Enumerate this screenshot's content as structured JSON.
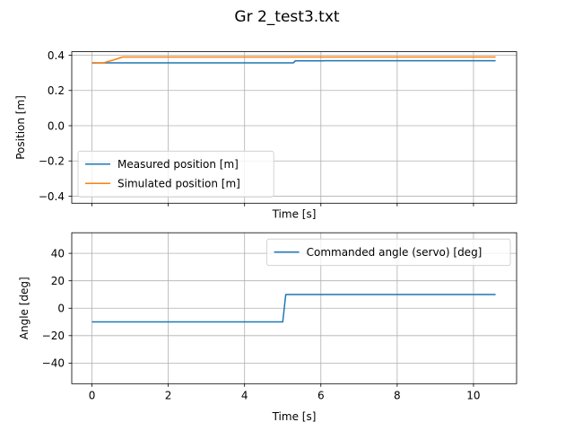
{
  "figure": {
    "title": "Gr 2_test3.txt"
  },
  "chart_data": [
    {
      "type": "line",
      "xlabel": "Time [s]",
      "ylabel": "Position [m]",
      "xlim": [
        -0.53,
        11.13
      ],
      "ylim": [
        -0.44,
        0.42
      ],
      "xticks": [
        0,
        2,
        4,
        6,
        8,
        10
      ],
      "show_xtick_labels": false,
      "yticks": [
        0.4,
        0.2,
        0.0,
        -0.2,
        -0.4
      ],
      "ytick_labels": [
        "0.4",
        "0.2",
        "0.0",
        "−0.2",
        "−0.4"
      ],
      "grid": true,
      "legend_position": "lower-left",
      "series": [
        {
          "name": "Measured position [m]",
          "color": "#1f77b4",
          "x": [
            0,
            0.4,
            5.28,
            5.33,
            6.05,
            6.1,
            10.58
          ],
          "y": [
            0.357,
            0.357,
            0.357,
            0.368,
            0.368,
            0.369,
            0.369
          ]
        },
        {
          "name": "Simulated position [m]",
          "color": "#ff7f0e",
          "x": [
            0,
            0.3,
            0.55,
            0.8,
            10.58
          ],
          "y": [
            0.355,
            0.357,
            0.372,
            0.39,
            0.39
          ]
        }
      ]
    },
    {
      "type": "line",
      "xlabel": "Time [s]",
      "ylabel": "Angle [deg]",
      "xlim": [
        -0.53,
        11.13
      ],
      "ylim": [
        -55,
        55
      ],
      "xticks": [
        0,
        2,
        4,
        6,
        8,
        10
      ],
      "xtick_labels": [
        "0",
        "2",
        "4",
        "6",
        "8",
        "10"
      ],
      "yticks": [
        40,
        20,
        0,
        -20,
        -40
      ],
      "ytick_labels": [
        "40",
        "20",
        "0",
        "−20",
        "−40"
      ],
      "grid": true,
      "legend_position": "upper-right",
      "series": [
        {
          "name": "Commanded angle (servo) [deg]",
          "color": "#1f77b4",
          "x": [
            0,
            5.0,
            5.08,
            10.58
          ],
          "y": [
            -10,
            -10,
            10,
            10
          ]
        }
      ]
    }
  ]
}
